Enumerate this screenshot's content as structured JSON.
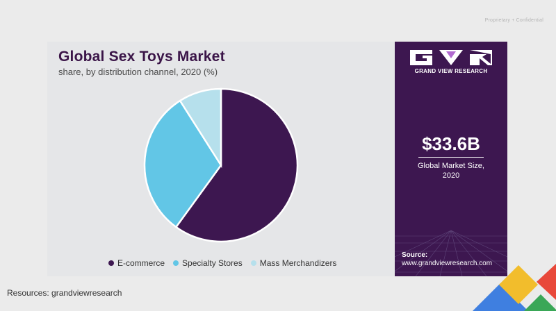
{
  "header": {
    "confidential": "Proprietary + Confidential"
  },
  "chart_data": {
    "type": "pie",
    "title": "Global Sex Toys Market",
    "subtitle": "share, by distribution channel, 2020 (%)",
    "categories": [
      "E-commerce",
      "Specialty Stores",
      "Mass Merchandizers"
    ],
    "values": [
      60,
      31,
      9
    ],
    "colors": [
      "#3d1750",
      "#62c6e6",
      "#b6e0ec"
    ],
    "legend_position": "bottom"
  },
  "side_panel": {
    "brand": "GRAND VIEW RESEARCH",
    "market_value": "$33.6B",
    "market_label_line1": "Global Market Size,",
    "market_label_line2": "2020",
    "source_label": "Source:",
    "source_url": "www.grandviewresearch.com"
  },
  "footer": {
    "resources": "Resources: grandviewresearch"
  }
}
